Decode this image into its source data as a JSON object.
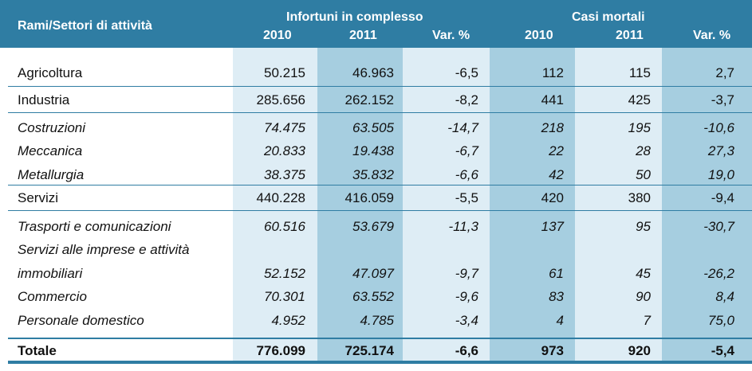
{
  "header": {
    "row_label": "Rami/Settori di attività",
    "group1": "Infortuni in complesso",
    "group2": "Casi mortali",
    "cols": [
      "2010",
      "2011",
      "Var. %",
      "2010",
      "2011",
      "Var. %"
    ]
  },
  "rows": [
    {
      "label": "Agricoltura",
      "v": [
        "50.215",
        "46.963",
        "-6,5",
        "112",
        "115",
        "2,7"
      ]
    },
    {
      "label": "Industria",
      "v": [
        "285.656",
        "262.152",
        "-8,2",
        "441",
        "425",
        "-3,7"
      ]
    },
    {
      "label": "Costruzioni",
      "v": [
        "74.475",
        "63.505",
        "-14,7",
        "218",
        "195",
        "-10,6"
      ]
    },
    {
      "label": "Meccanica",
      "v": [
        "20.833",
        "19.438",
        "-6,7",
        "22",
        "28",
        "27,3"
      ]
    },
    {
      "label": "Metallurgia",
      "v": [
        "38.375",
        "35.832",
        "-6,6",
        "42",
        "50",
        "19,0"
      ]
    },
    {
      "label": "Servizi",
      "v": [
        "440.228",
        "416.059",
        "-5,5",
        "420",
        "380",
        "-9,4"
      ]
    },
    {
      "label": "Trasporti e comunicazioni",
      "v": [
        "60.516",
        "53.679",
        "-11,3",
        "137",
        "95",
        "-30,7"
      ]
    },
    {
      "label": "Servizi alle imprese e attività",
      "v": []
    },
    {
      "label": "immobiliari",
      "v": [
        "52.152",
        "47.097",
        "-9,7",
        "61",
        "45",
        "-26,2"
      ]
    },
    {
      "label": "Commercio",
      "v": [
        "70.301",
        "63.552",
        "-9,6",
        "83",
        "90",
        "8,4"
      ]
    },
    {
      "label": "Personale domestico",
      "v": [
        "4.952",
        "4.785",
        "-3,4",
        "4",
        "7",
        "75,0"
      ]
    }
  ],
  "total": {
    "label": "Totale",
    "v": [
      "776.099",
      "725.174",
      "-6,6",
      "973",
      "920",
      "-5,4"
    ]
  },
  "colors": {
    "header_bg": "#2f7da3",
    "light_col": "#deedf5",
    "dark_col": "#a6cee0"
  }
}
